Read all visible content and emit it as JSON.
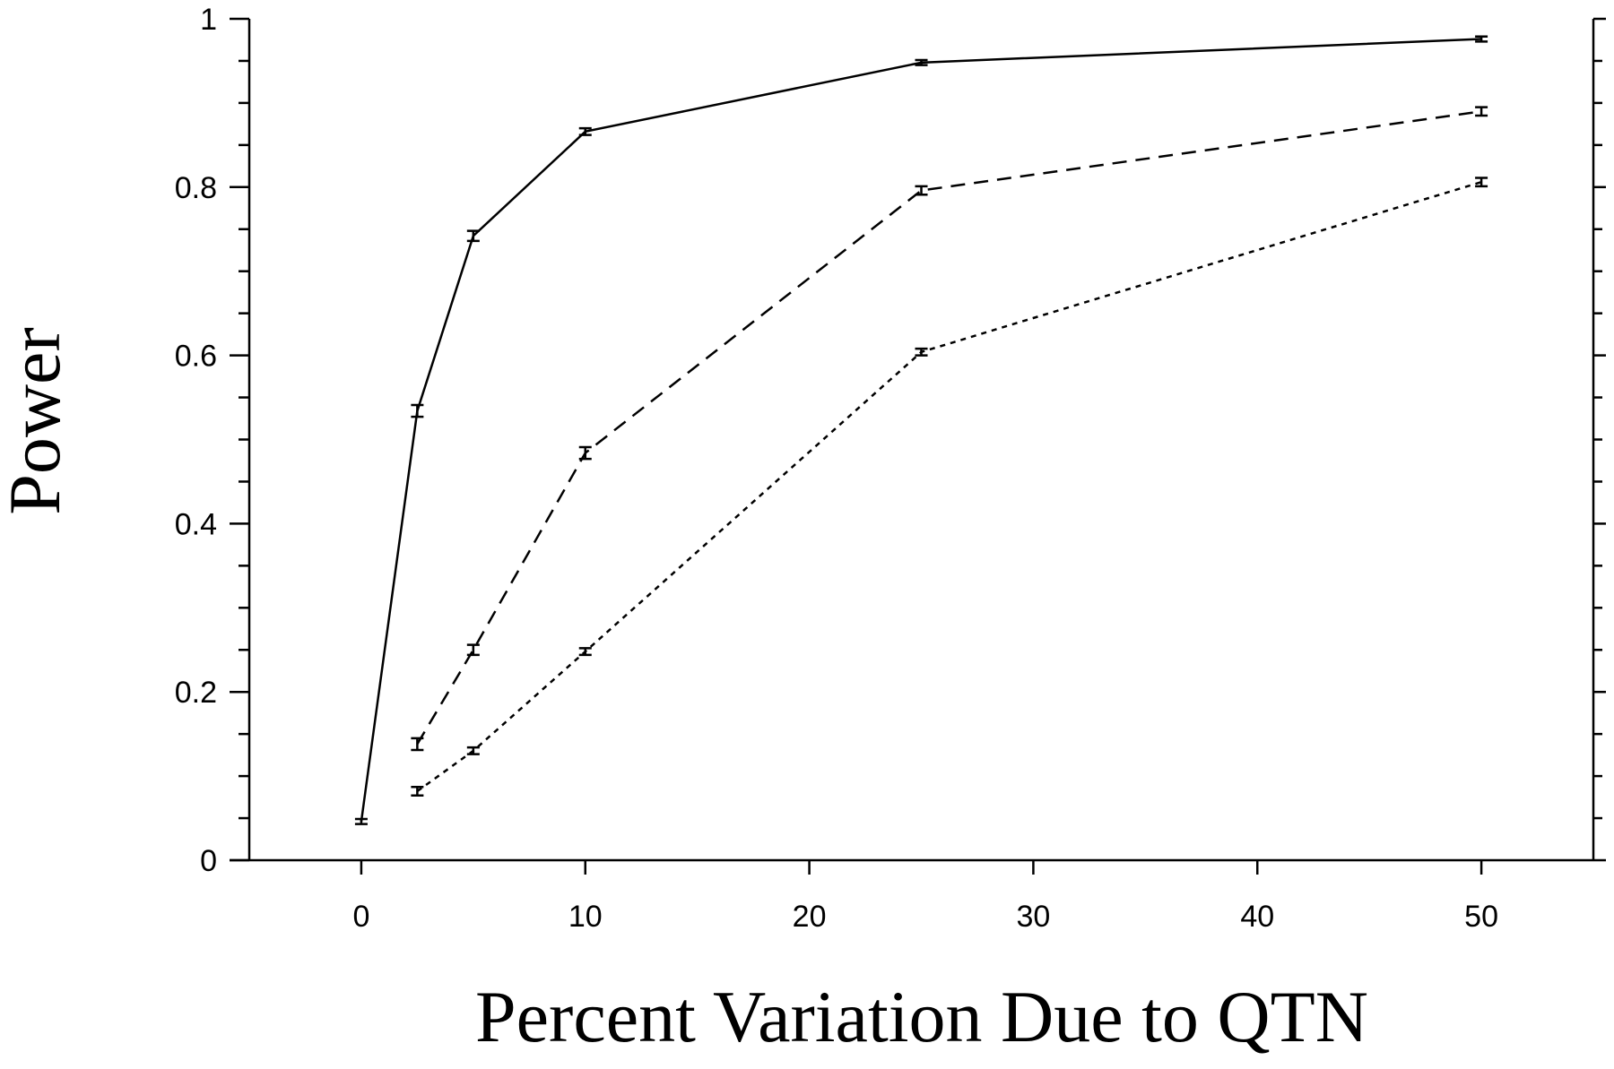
{
  "chart_data": {
    "type": "line",
    "xlabel": "Percent Variation Due to QTN",
    "ylabel": "Power",
    "x": [
      0,
      2.5,
      5,
      10,
      25,
      50
    ],
    "series": [
      {
        "color": "#000000",
        "dash": "solid",
        "values": [
          0.046,
          0.534,
          0.742,
          0.866,
          0.948,
          0.976
        ],
        "errors": [
          0.003,
          0.007,
          0.006,
          0.004,
          0.003,
          0.003
        ]
      },
      {
        "color": "#000000",
        "dash": "dashed",
        "values": [
          null,
          0.138,
          0.25,
          0.484,
          0.796,
          0.89
        ],
        "errors": [
          null,
          0.007,
          0.006,
          0.007,
          0.005,
          0.005
        ]
      },
      {
        "color": "#000000",
        "dash": "dotted",
        "values": [
          null,
          0.082,
          0.13,
          0.248,
          0.604,
          0.806
        ],
        "errors": [
          null,
          0.005,
          0.004,
          0.004,
          0.004,
          0.005
        ]
      }
    ],
    "xlim": [
      -5,
      55
    ],
    "ylim": [
      0,
      1
    ],
    "xticks": [
      0,
      10,
      20,
      30,
      40,
      50
    ],
    "yticks": [
      0,
      0.2,
      0.4,
      0.6,
      0.8,
      1
    ],
    "yminorticks": [
      0.05,
      0.1,
      0.15,
      0.25,
      0.3,
      0.35,
      0.45,
      0.5,
      0.55,
      0.65,
      0.7,
      0.75,
      0.85,
      0.9,
      0.95
    ],
    "right_axis_ticks": true,
    "grid": false
  }
}
